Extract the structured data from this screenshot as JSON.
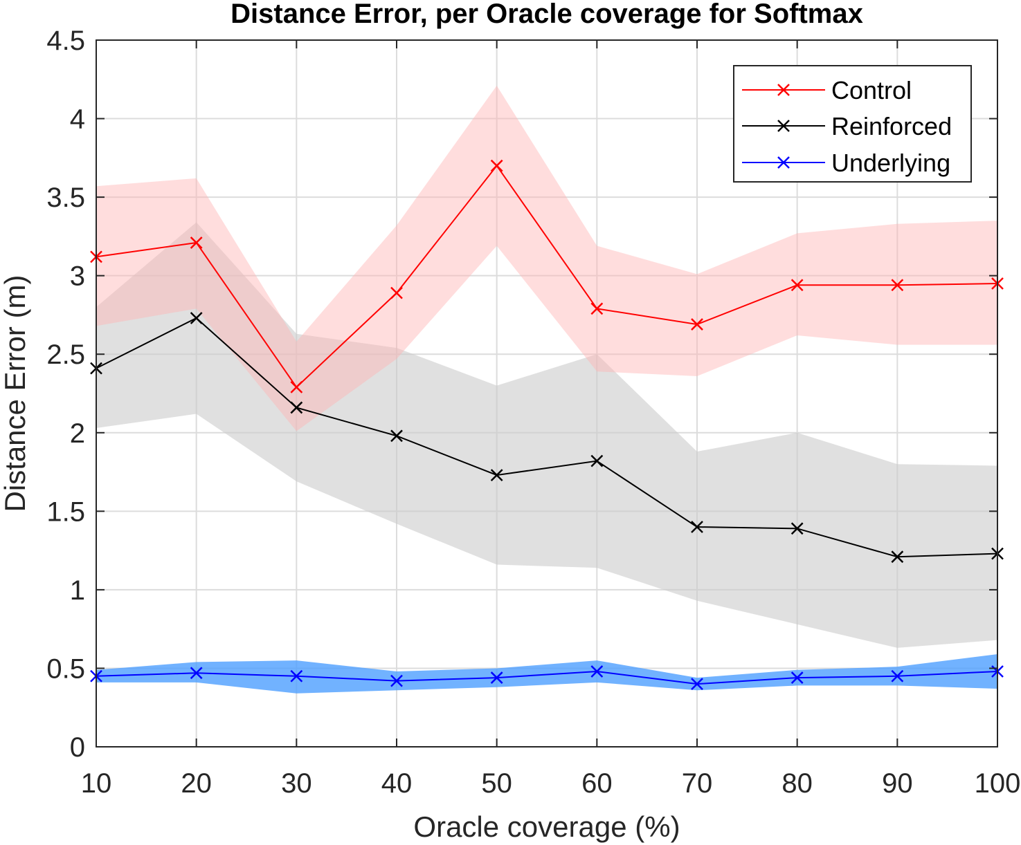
{
  "chart_data": {
    "type": "line",
    "title": "Distance Error, per Oracle coverage for Softmax",
    "xlabel": "Oracle coverage (%)",
    "ylabel": "Distance Error (m)",
    "x": [
      10,
      20,
      30,
      40,
      50,
      60,
      70,
      80,
      90,
      100
    ],
    "xlim": [
      10,
      100
    ],
    "ylim": [
      0,
      4.5
    ],
    "xticks": [
      10,
      20,
      30,
      40,
      50,
      60,
      70,
      80,
      90,
      100
    ],
    "xtick_labels": [
      "10",
      "20",
      "30",
      "40",
      "50",
      "60",
      "70",
      "80",
      "90",
      "100"
    ],
    "yticks": [
      0,
      0.5,
      1,
      1.5,
      2,
      2.5,
      3,
      3.5,
      4,
      4.5
    ],
    "ytick_labels": [
      "0",
      "0.5",
      "1",
      "1.5",
      "2",
      "2.5",
      "3",
      "3.5",
      "4",
      "4.5"
    ],
    "grid": true,
    "legend_position": "top-right",
    "series": [
      {
        "name": "Reinforced",
        "color": "#000000",
        "band_color": "#cccccc",
        "band_opacity": 0.6,
        "marker": "x",
        "values": [
          2.41,
          2.73,
          2.16,
          1.98,
          1.73,
          1.82,
          1.4,
          1.39,
          1.21,
          1.23
        ],
        "upper": [
          2.8,
          3.34,
          2.63,
          2.54,
          2.3,
          2.5,
          1.88,
          2.0,
          1.8,
          1.79
        ],
        "lower": [
          2.03,
          2.12,
          1.69,
          1.42,
          1.16,
          1.14,
          0.93,
          0.78,
          0.63,
          0.68
        ]
      },
      {
        "name": "Control",
        "color": "#ff0000",
        "band_color": "#ffb3b3",
        "band_opacity": 0.45,
        "marker": "x",
        "values": [
          3.12,
          3.21,
          2.29,
          2.89,
          3.7,
          2.79,
          2.69,
          2.94,
          2.94,
          2.95
        ],
        "upper": [
          3.57,
          3.62,
          2.58,
          3.32,
          4.21,
          3.19,
          3.01,
          3.27,
          3.33,
          3.35
        ],
        "lower": [
          2.68,
          2.79,
          2.01,
          2.47,
          3.19,
          2.39,
          2.36,
          2.62,
          2.56,
          2.56
        ]
      },
      {
        "name": "Underlying",
        "color": "#0000ff",
        "band_color": "#4d9fff",
        "band_opacity": 0.8,
        "marker": "x",
        "values": [
          0.45,
          0.47,
          0.45,
          0.42,
          0.44,
          0.48,
          0.4,
          0.44,
          0.45,
          0.48
        ],
        "upper": [
          0.49,
          0.54,
          0.55,
          0.48,
          0.5,
          0.55,
          0.44,
          0.49,
          0.51,
          0.59
        ],
        "lower": [
          0.41,
          0.41,
          0.34,
          0.36,
          0.38,
          0.41,
          0.36,
          0.39,
          0.39,
          0.37
        ]
      }
    ],
    "legend_order": [
      "Control",
      "Reinforced",
      "Underlying"
    ]
  }
}
